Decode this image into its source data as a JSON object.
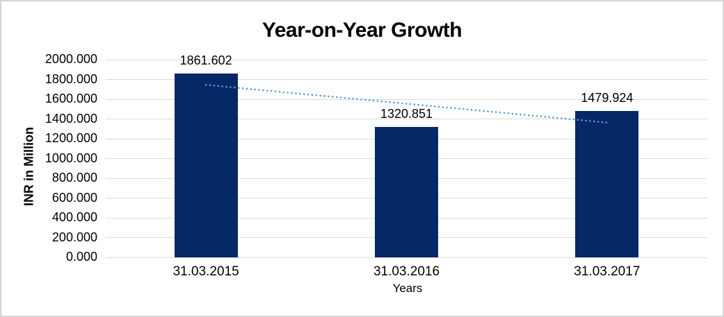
{
  "chart_data": {
    "type": "bar",
    "title": "Year-on-Year Growth",
    "categories": [
      "31.03.2015",
      "31.03.2016",
      "31.03.2017"
    ],
    "values": [
      1861.602,
      1320.851,
      1479.924
    ],
    "data_labels": [
      "1861.602",
      "1320.851",
      "1479.924"
    ],
    "xlabel": "Years",
    "ylabel": "INR in Million",
    "ylim": [
      0,
      2000
    ],
    "ytick_step": 200,
    "ytick_labels": [
      "2000.000",
      "1800.000",
      "1600.000",
      "1400.000",
      "1200.000",
      "1000.000",
      "800.000",
      "600.000",
      "400.000",
      "200.000",
      "0.000"
    ],
    "grid": "horizontal",
    "legend": "none",
    "trendline": {
      "type": "linear",
      "style": "dotted",
      "start_value": 1744.963,
      "end_value": 1363.285
    },
    "colors": {
      "bar": "#072866",
      "trendline": "#5b9bd5",
      "gridline": "#d9d9d9",
      "text": "#000000",
      "frame_border": "#d5d5d5",
      "background": "#ffffff"
    }
  }
}
